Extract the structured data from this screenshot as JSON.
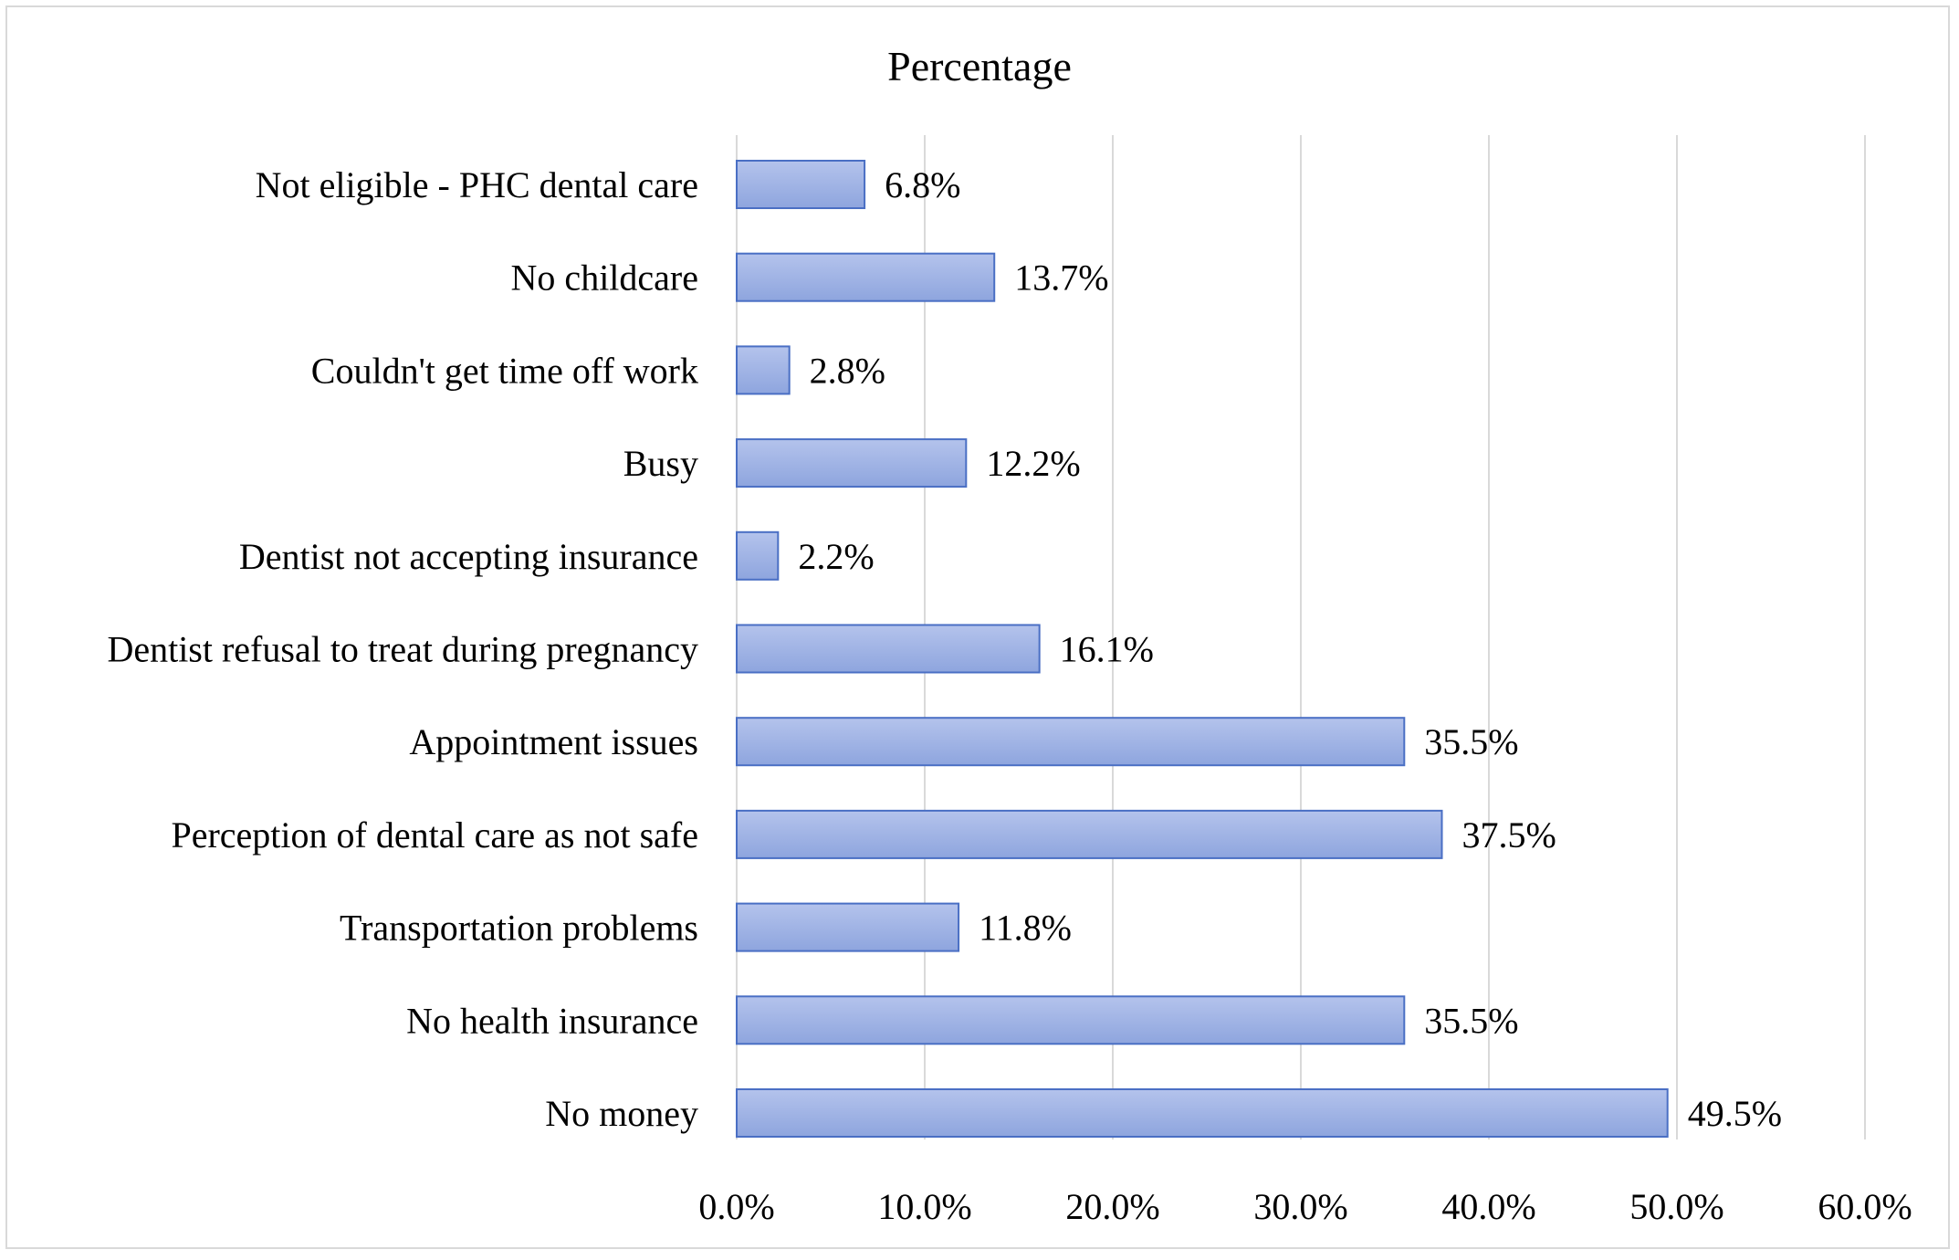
{
  "chart_data": {
    "type": "bar",
    "orientation": "horizontal",
    "title": "Percentage",
    "categories": [
      "Not eligible - PHC dental care",
      "No childcare",
      "Couldn't get time off work",
      "Busy",
      "Dentist not accepting insurance",
      "Dentist refusal to treat during pregnancy",
      "Appointment issues",
      "Perception of dental care as not safe",
      "Transportation problems",
      "No health insurance",
      "No money"
    ],
    "values": [
      6.8,
      13.7,
      2.8,
      12.2,
      2.2,
      16.1,
      35.5,
      37.5,
      11.8,
      35.5,
      49.5
    ],
    "data_labels": [
      "6.8%",
      "13.7%",
      "2.8%",
      "12.2%",
      "2.2%",
      "16.1%",
      "35.5%",
      "37.5%",
      "11.8%",
      "35.5%",
      "49.5%"
    ],
    "xlim": [
      0,
      60
    ],
    "xticks": [
      0,
      10,
      20,
      30,
      40,
      50,
      60
    ],
    "xtick_labels": [
      "0.0%",
      "10.0%",
      "20.0%",
      "30.0%",
      "40.0%",
      "50.0%",
      "60.0%"
    ],
    "xlabel": "",
    "ylabel": "",
    "grid": "vertical",
    "legend": "none",
    "colors": {
      "bar_fill_top": "#b4c3ec",
      "bar_fill_bottom": "#8ea5de",
      "bar_stroke": "#4a6fc4",
      "grid": "#d9d9d9"
    }
  }
}
